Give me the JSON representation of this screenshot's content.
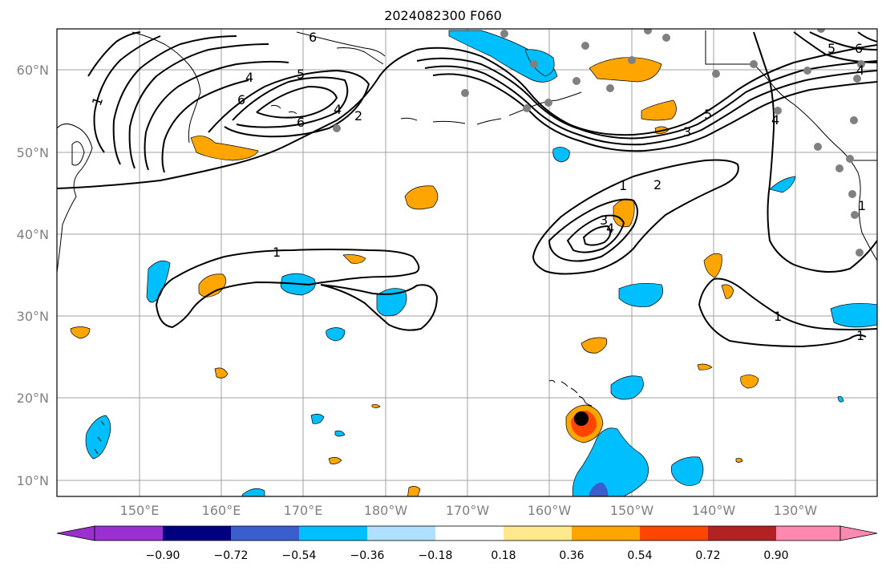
{
  "title": "2024082300 F060",
  "lat_labels": [
    "10°N",
    "20°N",
    "30°N",
    "40°N",
    "50°N",
    "60°N"
  ],
  "lon_labels": [
    "150°E",
    "160°E",
    "170°E",
    "180°W",
    "170°W",
    "160°W",
    "150°W",
    "140°W",
    "130°W"
  ],
  "colorbar": {
    "tick_labels": [
      "−0.90",
      "−0.72",
      "−0.54",
      "−0.36",
      "−0.18",
      "0.18",
      "0.36",
      "0.54",
      "0.72",
      "0.90"
    ],
    "colors": [
      "#9b30d0",
      "#000080",
      "#3a5fcd",
      "#00bfff",
      "#b0e0ff",
      "#ffffff",
      "#ffe98a",
      "#ffa500",
      "#ff4500",
      "#b22222",
      "#ff88b0"
    ]
  },
  "contour_labels": [
    "1",
    "2",
    "3",
    "4",
    "5",
    "6"
  ],
  "colors": {
    "axis_text": "#808080",
    "grid": "#a0a0a0",
    "contour": "#000000",
    "station": "#808080",
    "storm_center": "#000000"
  }
}
